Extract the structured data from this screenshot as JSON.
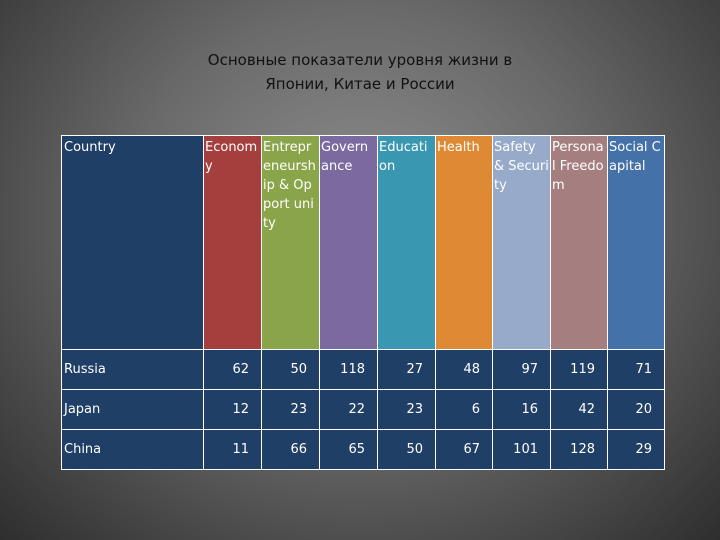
{
  "title": {
    "line1": "Основные показатели уровня жизни в",
    "line2": "Японии, Китае и России"
  },
  "table": {
    "corner": "Country",
    "columns": [
      {
        "label": "Econom y",
        "color": "#a43f3d"
      },
      {
        "label": "Entrepr eneursh ip & Opport unity",
        "color": "#8aa44a"
      },
      {
        "label": "Govern ance",
        "color": "#7a6aa0"
      },
      {
        "label": "Educati on",
        "color": "#3a97b2"
      },
      {
        "label": "Health",
        "color": "#de8a35"
      },
      {
        "label": "Safety & Security",
        "color": "#97aac9"
      },
      {
        "label": "Persona l Freedo m",
        "color": "#a57e80"
      },
      {
        "label": "Social Capital",
        "color": "#4472a8"
      }
    ],
    "rows": [
      {
        "country": "Russia",
        "values": [
          "62",
          "50",
          "118",
          "27",
          "48",
          "97",
          "119",
          "71"
        ]
      },
      {
        "country": "Japan",
        "values": [
          "12",
          "23",
          "22",
          "23",
          "6",
          "16",
          "42",
          "20"
        ]
      },
      {
        "country": "China",
        "values": [
          "11",
          "66",
          "65",
          "50",
          "67",
          "101",
          "128",
          "29"
        ]
      }
    ],
    "row_background": "#1f3f66"
  }
}
